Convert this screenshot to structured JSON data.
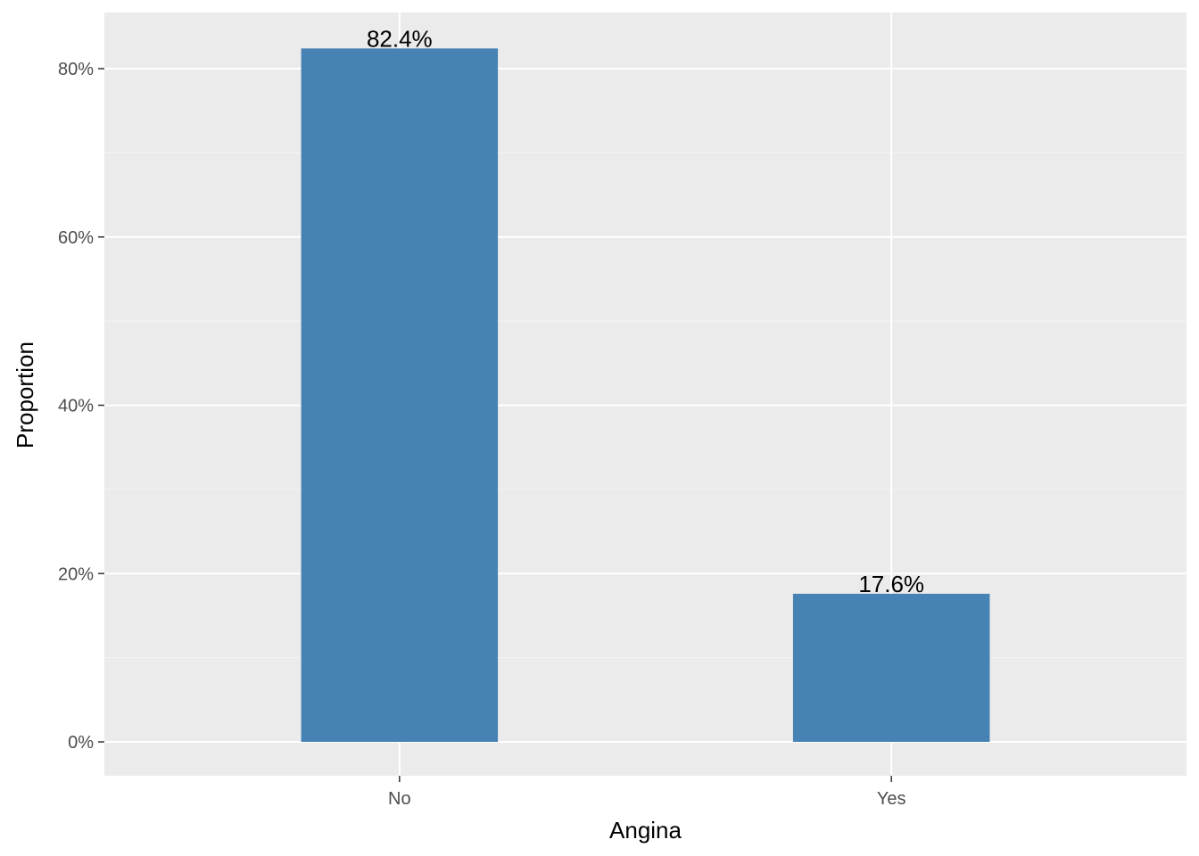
{
  "chart_data": {
    "type": "bar",
    "categories": [
      "No",
      "Yes"
    ],
    "values": [
      82.4,
      17.6
    ],
    "data_labels": [
      "82.4%",
      "17.6%"
    ],
    "title": "",
    "xlabel": "Angina",
    "ylabel": "Proportion",
    "ylim": [
      0,
      86
    ],
    "yticks": [
      0,
      20,
      40,
      60,
      80
    ],
    "ytick_labels": [
      "0%",
      "20%",
      "40%",
      "60%",
      "80%"
    ],
    "grid": true,
    "legend": "none"
  },
  "colors": {
    "bar": "#4682b4",
    "panel_background": "#ebebeb",
    "grid_major": "#ffffff",
    "grid_minor": "#f5f5f5",
    "tick_text": "#4d4d4d",
    "tick_mark": "#333333"
  }
}
